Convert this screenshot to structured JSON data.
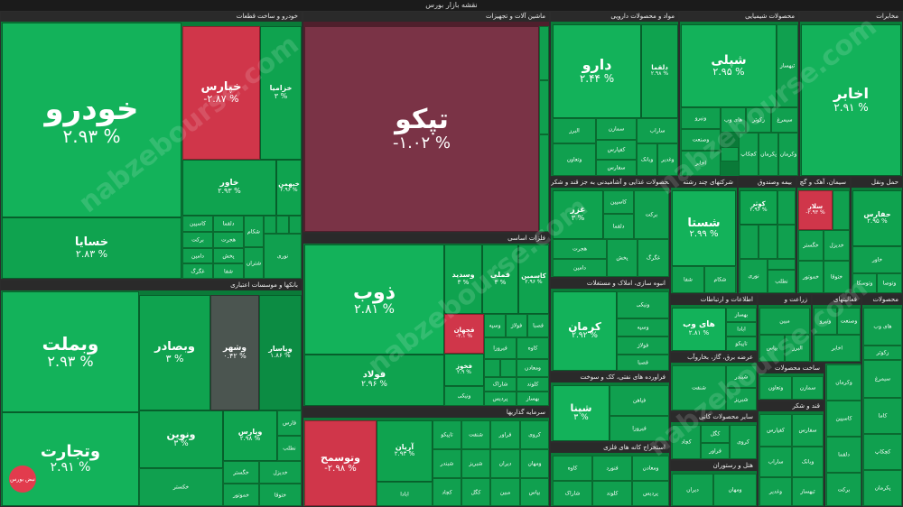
{
  "title": "نقشه بازار بورس",
  "watermark": "nabzebourse.com",
  "logo_text": "نبض بورس",
  "sectors": {
    "auto": "خودرو و ساخت قطعات",
    "machinery": "ماشین آلات و تجهیزات",
    "pharma": "مواد و محصولات دارویی",
    "chemical": "محصولات شیمیایی",
    "telecom": "مخابرات",
    "banks": "بانکها و موسسات اعتباری",
    "metals": "فلزات اساسی",
    "food": "محصولات غذایی و آشامیدنی به جز قند و شکر",
    "multi": "شرکتهای چند رشته",
    "insurance": "بیمه وصندوق",
    "cement": "سیمان، آهک و گچ",
    "transport": "حمل ونقل",
    "investment": "سرمایه گذاریها",
    "textile": "انبوه سازی، املاک و مستغلات",
    "it": "اطلاعات و ارتباطات",
    "agri": "زراعت و",
    "other": "فعالیتهای",
    "products": "محصولات",
    "refining": "فراورده های نفتی، کک و سوخت",
    "utilities": "عرضه برق، گاز، بخاروآب",
    "mining": "استخراج کانه های فلزی",
    "nonmetal": "سایر محصولات کانی",
    "sugar": "قند و شکر",
    "hotel": "هتل و رستوران",
    "metalprod": "ساخت محصولات"
  },
  "tiles": {
    "khodro": {
      "name": "خودرو",
      "pct": "۲.۹۳ %"
    },
    "khesapa": {
      "name": "خسایا",
      "pct": "۲.۸۳ %"
    },
    "khpars": {
      "name": "خپارس",
      "pct": "-۲.۸۷ %"
    },
    "khzamia": {
      "name": "خزامیا",
      "pct": "۳ %"
    },
    "khavar": {
      "name": "خاور",
      "pct": "۲.۹۳ %"
    },
    "khbahman": {
      "name": "خبهمن",
      "pct": "۲.۹۶ %"
    },
    "tapko": {
      "name": "تپکو",
      "pct": "-۱.۰۲ %"
    },
    "daru": {
      "name": "دارو",
      "pct": "۲.۴۴ %"
    },
    "dalgha": {
      "name": "دلقما",
      "pct": "۲.۹۸ %"
    },
    "shepli": {
      "name": "شپلی",
      "pct": "۲.۹۵ %"
    },
    "akhabr": {
      "name": "اخابر",
      "pct": "۲.۹۱ %"
    },
    "vbmelat": {
      "name": "وبملت",
      "pct": "۲.۹۳ %"
    },
    "vtejarat": {
      "name": "وتجارت",
      "pct": "۲.۹۱ %"
    },
    "vbsader": {
      "name": "وبصادر",
      "pct": "۳ %"
    },
    "vshahr": {
      "name": "وشهر",
      "pct": "۰.۴۲ %"
    },
    "vpasar": {
      "name": "وپاسار",
      "pct": "۱.۸۶ %"
    },
    "vnovin": {
      "name": "ونوین",
      "pct": "۳ %"
    },
    "vpars": {
      "name": "وپارس",
      "pct": "۲.۹۸ %"
    },
    "zob": {
      "name": "ذوب",
      "pct": "۲.۸۱ %"
    },
    "foolad": {
      "name": "فولاد",
      "pct": "۲.۹۶ %"
    },
    "vsepid": {
      "name": "وسدید",
      "pct": "۳ %"
    },
    "fmli": {
      "name": "فملی",
      "pct": "۳ %"
    },
    "kasamin": {
      "name": "کاسمین",
      "pct": "۲.۹۶ %"
    },
    "fjahan": {
      "name": "فجهان",
      "pct": "-۳.۱ %"
    },
    "fkhuz": {
      "name": "فخوز",
      "pct": "۲.۹ %"
    },
    "vtosmeh": {
      "name": "وتوسمح",
      "pct": "-۲.۹۸ %"
    },
    "arian": {
      "name": "آریان",
      "pct": "۲.۹۳ %"
    },
    "kerman": {
      "name": "کرمان",
      "pct": "۲.۹۲ %"
    },
    "shpena": {
      "name": "شپنا",
      "pct": "۳ %"
    },
    "shasta": {
      "name": "شستا",
      "pct": "۲.۹۹ %"
    },
    "hwab": {
      "name": "های وب",
      "pct": "۲.۸۱ %"
    },
    "hafarin": {
      "name": "حفارس",
      "pct": "۲.۹۵ %"
    },
    "ghazar": {
      "name": "غزر",
      "pct": "۳ %"
    },
    "kosar": {
      "name": "کوثر",
      "pct": "۲.۹۶ %"
    },
    "salar": {
      "name": "سلار",
      "pct": "-۲.۹۳ %"
    }
  },
  "small_labels": [
    "کاسپین",
    "دلقما",
    "برکت",
    "هجرت",
    "دامین",
    "پخش",
    "غگرگ",
    "شفا",
    "شکام",
    "شتران",
    "شیراز",
    "شپدیس",
    "کگل",
    "نوری",
    "فارس",
    "نطلب",
    "خکستر",
    "خگستر",
    "خدیزل",
    "خموتور",
    "ختوقا",
    "خاور",
    "وتوسکا",
    "وتوصا",
    "ونیکی",
    "وسپه",
    "فولاژ",
    "فصبا",
    "فیاهن",
    "فیروزا",
    "کاوه",
    "فنورد",
    "ومعادن",
    "شاراک",
    "کلوند",
    "پردیس",
    "بهساز",
    "آبادا",
    "تاپیکو",
    "شنفت",
    "شبندر",
    "شبریز",
    "کچاد",
    "کگل",
    "فرآور",
    "کروی",
    "دیران",
    "ومهان",
    "مبین",
    "بپاس",
    "البرز",
    "وتعاون",
    "سمازن",
    "کفپارس",
    "سفارس",
    "ساراب",
    "وبانک",
    "وغدیر",
    "ثبهساز",
    "ونیرو",
    "وصنعت",
    "اخابر",
    "های وب",
    "زکوثر",
    "سیمرغ",
    "کاما",
    "کچکاپ",
    "پکرمان",
    "وکرمان"
  ]
}
